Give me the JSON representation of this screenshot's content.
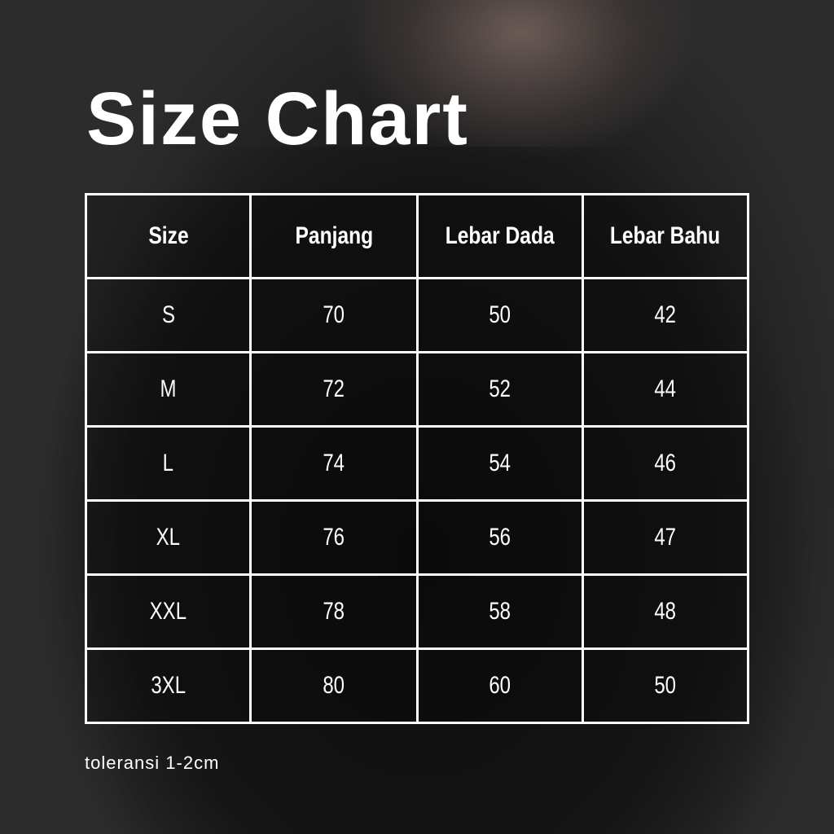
{
  "title": "Size Chart",
  "table": {
    "headers": [
      "Size",
      "Panjang",
      "Lebar Dada",
      "Lebar Bahu"
    ],
    "rows": [
      [
        "S",
        "70",
        "50",
        "42"
      ],
      [
        "M",
        "72",
        "52",
        "44"
      ],
      [
        "L",
        "74",
        "54",
        "46"
      ],
      [
        "XL",
        "76",
        "56",
        "47"
      ],
      [
        "XXL",
        "78",
        "58",
        "48"
      ],
      [
        "3XL",
        "80",
        "60",
        "50"
      ]
    ]
  },
  "note": "toleransi 1-2cm"
}
